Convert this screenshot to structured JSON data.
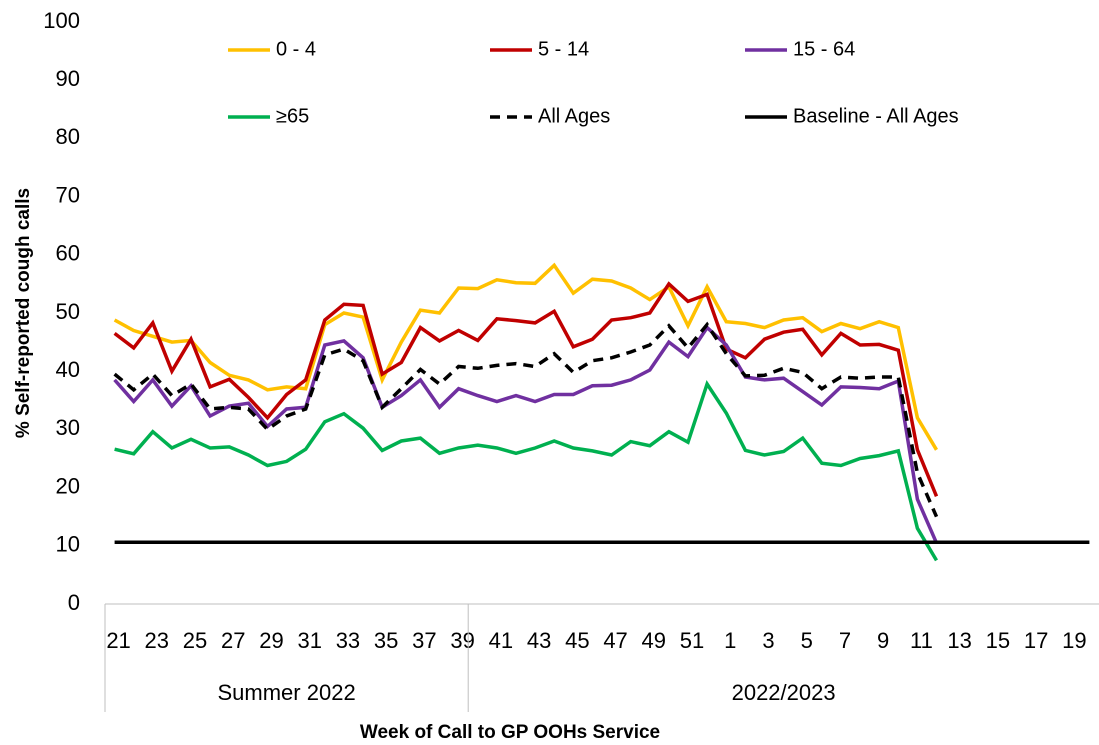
{
  "chart_data": {
    "type": "line",
    "y_label": "% Self-reported cough calls",
    "x_label": "Week of Call to GP OOHs Service",
    "groups": [
      "Summer 2022",
      "2022/2023"
    ],
    "categories": [
      "21",
      null,
      "23",
      null,
      "25",
      null,
      "27",
      null,
      "29",
      null,
      "31",
      null,
      "33",
      null,
      "35",
      null,
      "37",
      null,
      "39",
      null,
      "41",
      null,
      "43",
      null,
      "45",
      null,
      "47",
      null,
      "49",
      null,
      "51",
      null,
      "1",
      null,
      "3",
      null,
      "5",
      null,
      "7",
      null,
      "9",
      null,
      "11",
      null,
      "13",
      null,
      "15",
      null,
      "17",
      null,
      "19",
      null
    ],
    "ylim": [
      0,
      100
    ],
    "yticks": [
      0,
      10,
      20,
      30,
      40,
      50,
      60,
      70,
      80,
      90,
      100
    ],
    "series": [
      {
        "name": "0 - 4",
        "color": "#ffc000",
        "dashed": false,
        "values": [
          48.8,
          47,
          46,
          45,
          45.3,
          41.5,
          39.3,
          38.5,
          36.8,
          37.3,
          37,
          48,
          50,
          49.3,
          38.5,
          45,
          50.5,
          50,
          54.3,
          54.2,
          55.7,
          55.2,
          55.1,
          58.2,
          53.4,
          55.8,
          55.5,
          54.3,
          52.3,
          54.5,
          47.8,
          54.5,
          48.5,
          48.2,
          47.5,
          48.8,
          49.2,
          46.8,
          48.2,
          47.3,
          48.5,
          47.5,
          32,
          26.5,
          null,
          null,
          null,
          null,
          null,
          null,
          null,
          null
        ]
      },
      {
        "name": "5 - 14",
        "color": "#c00000",
        "dashed": false,
        "values": [
          46.5,
          44,
          48.3,
          40,
          45.5,
          37.3,
          38.6,
          35.5,
          32,
          36,
          38.5,
          48.8,
          51.5,
          51.3,
          39.5,
          41.5,
          47.5,
          45.2,
          47,
          45.3,
          49,
          48.7,
          48.3,
          50.3,
          44.2,
          45.5,
          48.8,
          49.2,
          50,
          55,
          52,
          53.2,
          43.8,
          42.3,
          45.5,
          46.7,
          47.2,
          42.8,
          46.5,
          44.5,
          44.6,
          43.6,
          26.5,
          18.5,
          null,
          null,
          null,
          null,
          null,
          null,
          null,
          null
        ]
      },
      {
        "name": "15 - 64",
        "color": "#7030a0",
        "dashed": false,
        "values": [
          38.5,
          34.8,
          38.5,
          34,
          37.5,
          32.3,
          34,
          34.5,
          30.5,
          33.5,
          33.8,
          44.5,
          45.2,
          42.3,
          33.8,
          35.8,
          38.5,
          33.8,
          37,
          35.8,
          34.8,
          35.8,
          34.8,
          36,
          36,
          37.5,
          37.6,
          38.5,
          40.2,
          45,
          42.5,
          47.5,
          44.5,
          39,
          38.5,
          38.8,
          36.5,
          34.2,
          37.3,
          37.2,
          37,
          38.3,
          18,
          10.5,
          null,
          null,
          null,
          null,
          null,
          null,
          null,
          null
        ]
      },
      {
        "name": "≥65",
        "color": "#00b050",
        "dashed": false,
        "values": [
          26.6,
          25.8,
          29.6,
          26.8,
          28.3,
          26.8,
          27,
          25.6,
          23.8,
          24.5,
          26.6,
          31.3,
          32.7,
          30.2,
          26.4,
          28,
          28.5,
          25.9,
          26.8,
          27.3,
          26.8,
          25.9,
          26.8,
          28,
          26.8,
          26.3,
          25.6,
          27.9,
          27.2,
          29.6,
          27.8,
          37.8,
          32.8,
          26.4,
          25.6,
          26.2,
          28.5,
          24.2,
          23.8,
          25,
          25.5,
          26.3,
          13,
          7.5,
          null,
          null,
          null,
          null,
          null,
          null,
          null,
          null
        ]
      },
      {
        "name": "All Ages",
        "color": "#000000",
        "dashed": true,
        "values": [
          39.5,
          36.8,
          39.5,
          35.8,
          37.8,
          33.5,
          33.8,
          33.5,
          30,
          32.3,
          33.5,
          42.8,
          43.8,
          41.8,
          33.8,
          37,
          40.3,
          37.8,
          40.8,
          40.5,
          41,
          41.3,
          40.8,
          43,
          39.8,
          41.8,
          42.3,
          43.3,
          44.5,
          47.8,
          44,
          48,
          43,
          39.2,
          39.3,
          40.5,
          39.8,
          37,
          39,
          38.8,
          39,
          39,
          22.5,
          15,
          null,
          null,
          null,
          null,
          null,
          null,
          null,
          null
        ]
      },
      {
        "name": "Baseline - All Ages",
        "color": "#000000",
        "dashed": false,
        "values": [
          10.6,
          10.6,
          10.6,
          10.6,
          10.6,
          10.6,
          10.6,
          10.6,
          10.6,
          10.6,
          10.6,
          10.6,
          10.6,
          10.6,
          10.6,
          10.6,
          10.6,
          10.6,
          10.6,
          10.6,
          10.6,
          10.6,
          10.6,
          10.6,
          10.6,
          10.6,
          10.6,
          10.6,
          10.6,
          10.6,
          10.6,
          10.6,
          10.6,
          10.6,
          10.6,
          10.6,
          10.6,
          10.6,
          10.6,
          10.6,
          10.6,
          10.6,
          10.6,
          10.6,
          10.6,
          10.6,
          10.6,
          10.6,
          10.6,
          10.6,
          10.6,
          10.6
        ]
      }
    ]
  }
}
